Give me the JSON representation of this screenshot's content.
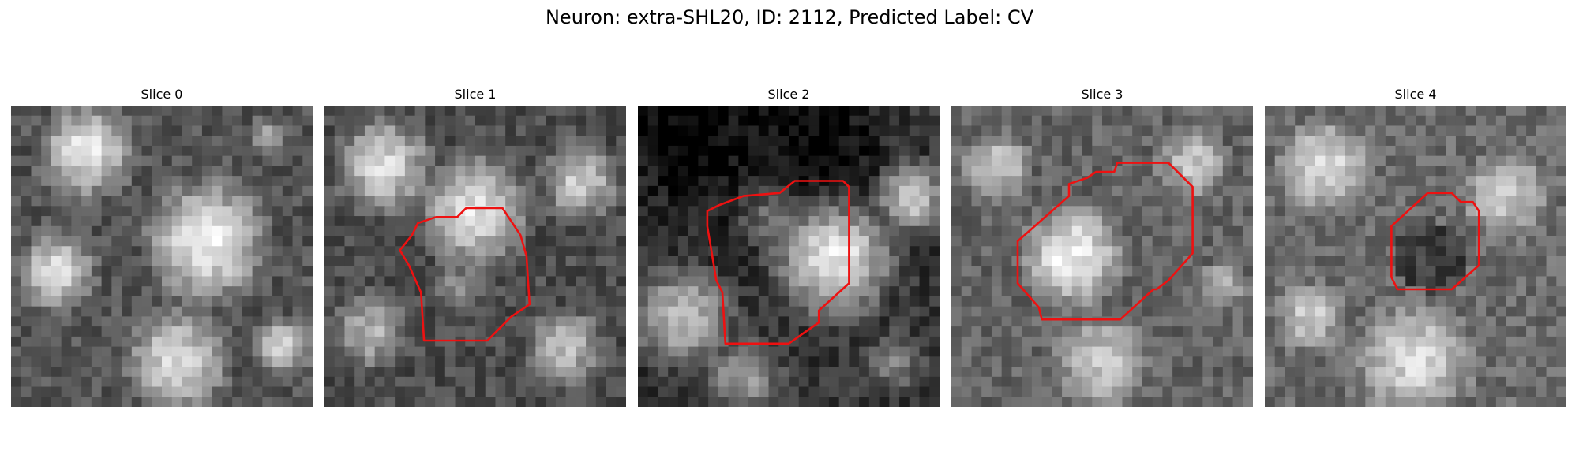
{
  "figure": {
    "title": "Neuron: extra-SHL20, ID: 2112, Predicted Label: CV"
  },
  "panels": [
    {
      "title": "Slice 0",
      "seed": 11,
      "blobs": [
        [
          0.25,
          0.15,
          0.18,
          0.9
        ],
        [
          0.65,
          0.45,
          0.22,
          0.95
        ],
        [
          0.15,
          0.55,
          0.15,
          0.85
        ],
        [
          0.55,
          0.85,
          0.2,
          0.85
        ],
        [
          0.9,
          0.8,
          0.12,
          0.8
        ],
        [
          0.85,
          0.1,
          0.1,
          0.6
        ]
      ],
      "base": 0.55,
      "outline": []
    },
    {
      "title": "Slice 1",
      "seed": 23,
      "blobs": [
        [
          0.2,
          0.2,
          0.18,
          0.85
        ],
        [
          0.5,
          0.35,
          0.2,
          0.9
        ],
        [
          0.45,
          0.6,
          0.12,
          0.55
        ],
        [
          0.15,
          0.75,
          0.15,
          0.7
        ],
        [
          0.8,
          0.8,
          0.15,
          0.75
        ],
        [
          0.85,
          0.25,
          0.15,
          0.8
        ]
      ],
      "base": 0.5,
      "outline": [
        [
          0.37,
          0.37
        ],
        [
          0.44,
          0.37
        ],
        [
          0.47,
          0.34
        ],
        [
          0.59,
          0.34
        ],
        [
          0.65,
          0.43
        ],
        [
          0.67,
          0.5
        ],
        [
          0.68,
          0.66
        ],
        [
          0.62,
          0.7
        ],
        [
          0.54,
          0.78
        ],
        [
          0.47,
          0.78
        ],
        [
          0.33,
          0.78
        ],
        [
          0.32,
          0.62
        ],
        [
          0.28,
          0.53
        ],
        [
          0.25,
          0.48
        ],
        [
          0.29,
          0.43
        ],
        [
          0.31,
          0.39
        ]
      ],
      "outline_color": "#ee1111"
    },
    {
      "title": "Slice 2",
      "seed": 37,
      "blobs": [
        [
          0.65,
          0.5,
          0.2,
          0.95
        ],
        [
          0.45,
          0.35,
          0.15,
          0.6
        ],
        [
          0.9,
          0.3,
          0.12,
          0.85
        ],
        [
          0.15,
          0.7,
          0.18,
          0.75
        ],
        [
          0.35,
          0.9,
          0.15,
          0.6
        ],
        [
          0.85,
          0.85,
          0.12,
          0.5
        ]
      ],
      "base": 0.35,
      "dark": [
        [
          0.2,
          0.1,
          0.35
        ],
        [
          0.6,
          0.1,
          0.25
        ]
      ],
      "outline": [
        [
          0.23,
          0.35
        ],
        [
          0.27,
          0.33
        ],
        [
          0.35,
          0.3
        ],
        [
          0.47,
          0.29
        ],
        [
          0.52,
          0.25
        ],
        [
          0.68,
          0.25
        ],
        [
          0.7,
          0.27
        ],
        [
          0.7,
          0.59
        ],
        [
          0.6,
          0.68
        ],
        [
          0.6,
          0.72
        ],
        [
          0.5,
          0.79
        ],
        [
          0.29,
          0.79
        ],
        [
          0.28,
          0.62
        ],
        [
          0.26,
          0.58
        ],
        [
          0.25,
          0.52
        ],
        [
          0.23,
          0.4
        ]
      ],
      "outline_color": "#ee1111"
    },
    {
      "title": "Slice 3",
      "seed": 51,
      "blobs": [
        [
          0.4,
          0.5,
          0.2,
          0.95
        ],
        [
          0.15,
          0.2,
          0.15,
          0.8
        ],
        [
          0.8,
          0.2,
          0.15,
          0.8
        ],
        [
          0.5,
          0.85,
          0.2,
          0.8
        ],
        [
          0.9,
          0.6,
          0.12,
          0.7
        ]
      ],
      "base": 0.65,
      "outline": [
        [
          0.22,
          0.45
        ],
        [
          0.39,
          0.3
        ],
        [
          0.39,
          0.26
        ],
        [
          0.45,
          0.24
        ],
        [
          0.48,
          0.22
        ],
        [
          0.54,
          0.22
        ],
        [
          0.55,
          0.19
        ],
        [
          0.72,
          0.19
        ],
        [
          0.8,
          0.27
        ],
        [
          0.8,
          0.49
        ],
        [
          0.72,
          0.58
        ],
        [
          0.68,
          0.61
        ],
        [
          0.67,
          0.61
        ],
        [
          0.56,
          0.71
        ],
        [
          0.3,
          0.71
        ],
        [
          0.29,
          0.67
        ],
        [
          0.22,
          0.59
        ]
      ],
      "outline_color": "#ee1111"
    },
    {
      "title": "Slice 4",
      "seed": 67,
      "blobs": [
        [
          0.2,
          0.2,
          0.2,
          0.85
        ],
        [
          0.8,
          0.3,
          0.2,
          0.8
        ],
        [
          0.5,
          0.85,
          0.25,
          0.85
        ],
        [
          0.15,
          0.7,
          0.15,
          0.8
        ]
      ],
      "base": 0.7,
      "ring": [
        0.55,
        0.5,
        0.12
      ],
      "outline": [
        [
          0.42,
          0.4
        ],
        [
          0.54,
          0.29
        ],
        [
          0.62,
          0.29
        ],
        [
          0.65,
          0.32
        ],
        [
          0.69,
          0.32
        ],
        [
          0.71,
          0.35
        ],
        [
          0.71,
          0.53
        ],
        [
          0.62,
          0.61
        ],
        [
          0.44,
          0.61
        ],
        [
          0.42,
          0.57
        ]
      ],
      "outline_color": "#ee1111"
    }
  ]
}
